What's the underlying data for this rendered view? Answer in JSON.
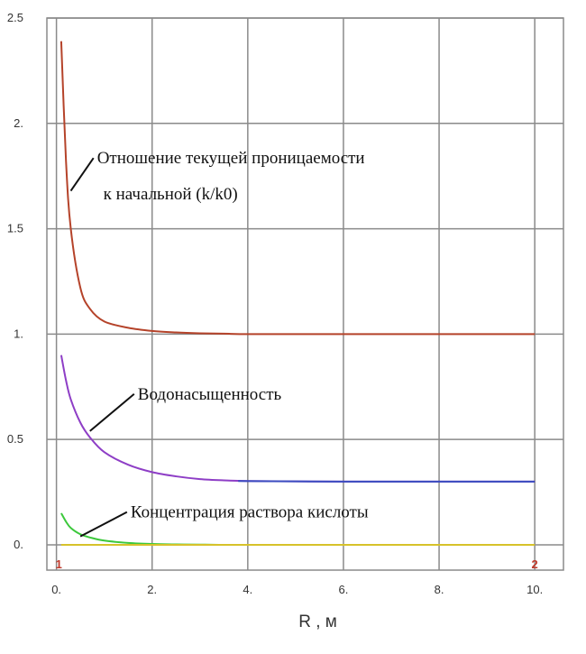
{
  "chart_data": {
    "type": "line",
    "title": "",
    "xlabel": "R , м",
    "ylabel": "",
    "xlim": [
      -0.2,
      10.6
    ],
    "ylim": [
      -0.12,
      2.5
    ],
    "xticks": [
      0,
      2,
      4,
      6,
      8,
      10
    ],
    "xtick_labels": [
      "0.",
      "2.",
      "4.",
      "6.",
      "8.",
      "10."
    ],
    "yticks": [
      0,
      0.5,
      1,
      1.5,
      2,
      2.5
    ],
    "ytick_labels": [
      "0.",
      "0.5",
      "1.",
      "1.5",
      "2.",
      "2.5"
    ],
    "grid": true,
    "series": [
      {
        "color": "#b5432a",
        "x": [
          0.1,
          0.2,
          0.3,
          0.5,
          0.7,
          1.0,
          1.5,
          2.0,
          2.5,
          3.0,
          3.5,
          4.0,
          5.0,
          6.0,
          8.0,
          10.0
        ],
        "y": [
          2.39,
          1.82,
          1.5,
          1.22,
          1.12,
          1.06,
          1.03,
          1.015,
          1.008,
          1.004,
          1.002,
          1.0,
          1.0,
          1.0,
          1.0,
          1.0
        ]
      },
      {
        "color": "#8e3ec6",
        "x": [
          0.1,
          0.2,
          0.3,
          0.5,
          0.7,
          1.0,
          1.5,
          2.0,
          2.5,
          3.0,
          3.5,
          4.0,
          5.0,
          6.0,
          8.0,
          10.0
        ],
        "y": [
          0.9,
          0.78,
          0.69,
          0.58,
          0.51,
          0.44,
          0.38,
          0.345,
          0.325,
          0.312,
          0.306,
          0.303,
          0.301,
          0.3,
          0.3,
          0.3
        ]
      },
      {
        "color": "#3b4cc0",
        "x": [
          3.8,
          5.0,
          6.0,
          8.0,
          10.0
        ],
        "y": [
          0.303,
          0.301,
          0.3,
          0.3,
          0.3
        ]
      },
      {
        "color": "#3cc83c",
        "x": [
          0.1,
          0.2,
          0.3,
          0.5,
          0.7,
          1.0,
          1.5,
          2.0,
          2.5,
          3.0,
          3.4
        ],
        "y": [
          0.15,
          0.11,
          0.08,
          0.05,
          0.035,
          0.02,
          0.009,
          0.004,
          0.002,
          0.001,
          0.0
        ]
      },
      {
        "color": "#d6c22a",
        "x": [
          0.1,
          10.0
        ],
        "y": [
          0.0,
          0.0
        ]
      }
    ],
    "annotations": [
      {
        "text": "Отношение текущей проницаемости",
        "x": 0.85,
        "y": 1.81,
        "pointer_to": [
          0.3,
          1.68
        ]
      },
      {
        "text": "к начальной (k/k0)",
        "x": 0.98,
        "y": 1.64
      },
      {
        "text": "Водонасыщенность",
        "x": 1.7,
        "y": 0.69,
        "pointer_to": [
          0.7,
          0.54
        ]
      },
      {
        "text": "Концентрация раствора кислоты",
        "x": 1.55,
        "y": 0.13,
        "pointer_to": [
          0.5,
          0.04
        ]
      }
    ],
    "markers": [
      {
        "text": "1",
        "x": 0.05,
        "y": -0.09
      },
      {
        "text": "2",
        "x": 10.0,
        "y": -0.09
      }
    ]
  }
}
